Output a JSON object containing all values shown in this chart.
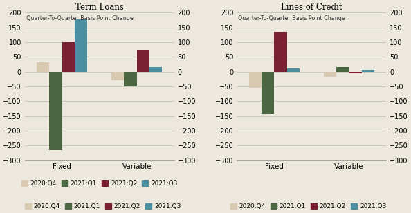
{
  "title_left": "Term Loans",
  "title_right": "Lines of Credit",
  "ylabel": "Quarter-To-Quarter Basis Point Change",
  "categories": [
    "Fixed",
    "Variable"
  ],
  "quarters": [
    "2020:Q4",
    "2021:Q1",
    "2021:Q2",
    "2021:Q3"
  ],
  "colors": [
    "#d9c9b0",
    "#4a6741",
    "#7b2033",
    "#4a8fa0"
  ],
  "term_loans": {
    "Fixed": [
      33,
      -265,
      100,
      177
    ],
    "Variable": [
      -28,
      -50,
      75,
      15
    ]
  },
  "lines_of_credit": {
    "Fixed": [
      -55,
      -145,
      135,
      10
    ],
    "Variable": [
      -18,
      15,
      -5,
      5
    ]
  },
  "ylim": [
    -300,
    200
  ],
  "yticks": [
    -300,
    -250,
    -200,
    -150,
    -100,
    -50,
    0,
    50,
    100,
    150,
    200
  ],
  "bar_width": 0.17,
  "bg_color": "#ede8de"
}
